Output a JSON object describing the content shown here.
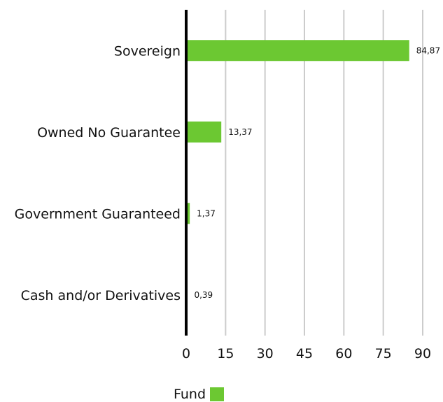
{
  "chart_data": {
    "type": "bar",
    "orientation": "horizontal",
    "categories": [
      "Sovereign",
      "Owned No Guarantee",
      "Government Guaranteed",
      "Cash and/or Derivatives"
    ],
    "series": [
      {
        "name": "Fund",
        "values": [
          84.87,
          13.37,
          1.37,
          0.39
        ],
        "labels": [
          "84,87",
          "13,37",
          "1,37",
          "0,39"
        ]
      }
    ],
    "xlim": [
      0,
      90
    ],
    "xticks": [
      0,
      15,
      30,
      45,
      60,
      75,
      90
    ],
    "grid": true,
    "legend": "bottom",
    "colors": {
      "bar": "#6cc832",
      "grid": "#cccccc",
      "axis": "#000000"
    }
  },
  "legend": {
    "label": "Fund"
  }
}
